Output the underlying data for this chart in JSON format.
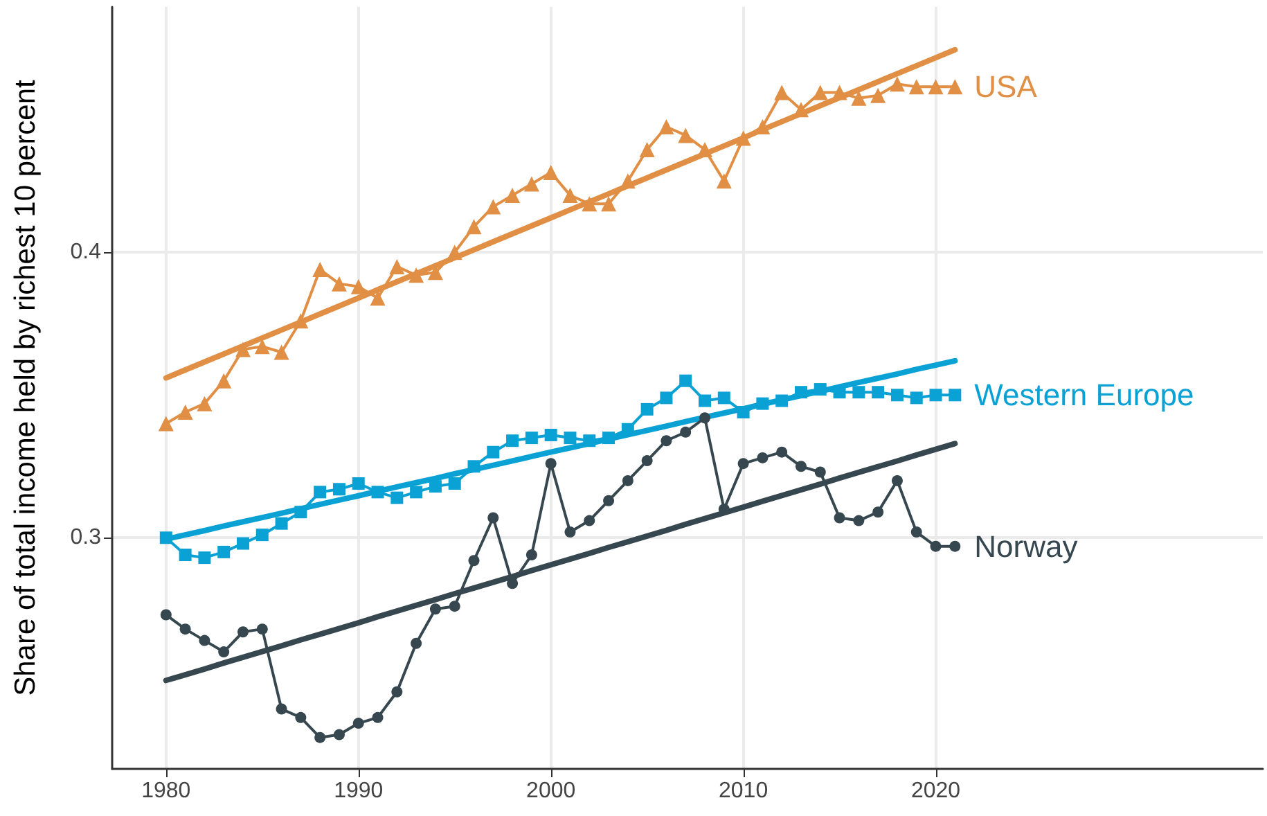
{
  "chart_data": {
    "type": "line",
    "ylabel": "Share of total income held by richest 10 percent",
    "x": [
      1980,
      1981,
      1982,
      1983,
      1984,
      1985,
      1986,
      1987,
      1988,
      1989,
      1990,
      1991,
      1992,
      1993,
      1994,
      1995,
      1996,
      1997,
      1998,
      1999,
      2000,
      2001,
      2002,
      2003,
      2004,
      2005,
      2006,
      2007,
      2008,
      2009,
      2010,
      2011,
      2012,
      2013,
      2014,
      2015,
      2016,
      2017,
      2018,
      2019,
      2020,
      2021
    ],
    "series": [
      {
        "name": "USA",
        "color": "#e08f45",
        "marker": "triangle",
        "values": [
          0.34,
          0.344,
          0.347,
          0.355,
          0.366,
          0.367,
          0.365,
          0.376,
          0.394,
          0.389,
          0.388,
          0.384,
          0.395,
          0.392,
          0.393,
          0.4,
          0.409,
          0.416,
          0.42,
          0.424,
          0.428,
          0.42,
          0.417,
          0.417,
          0.425,
          0.436,
          0.444,
          0.441,
          0.436,
          0.425,
          0.44,
          0.444,
          0.456,
          0.45,
          0.456,
          0.456,
          0.454,
          0.455,
          0.459,
          0.458,
          0.458,
          0.458
        ]
      },
      {
        "name": "Western Europe",
        "color": "#0aa1d5",
        "marker": "square",
        "values": [
          0.3,
          0.294,
          0.293,
          0.295,
          0.298,
          0.301,
          0.305,
          0.309,
          0.316,
          0.317,
          0.319,
          0.316,
          0.314,
          0.316,
          0.318,
          0.319,
          0.325,
          0.33,
          0.334,
          0.335,
          0.336,
          0.335,
          0.334,
          0.335,
          0.338,
          0.345,
          0.349,
          0.355,
          0.348,
          0.349,
          0.344,
          0.347,
          0.348,
          0.351,
          0.352,
          0.351,
          0.351,
          0.351,
          0.35,
          0.349,
          0.35,
          0.35
        ]
      },
      {
        "name": "Norway",
        "color": "#37474f",
        "marker": "circle",
        "values": [
          0.273,
          0.268,
          0.264,
          0.26,
          0.267,
          0.268,
          0.24,
          0.237,
          0.23,
          0.231,
          0.235,
          0.237,
          0.246,
          0.263,
          0.275,
          0.276,
          0.292,
          0.307,
          0.284,
          0.294,
          0.326,
          0.302,
          0.306,
          0.313,
          0.32,
          0.327,
          0.334,
          0.337,
          0.342,
          0.31,
          0.326,
          0.328,
          0.33,
          0.325,
          0.323,
          0.307,
          0.306,
          0.309,
          0.32,
          0.302,
          0.297,
          0.297
        ]
      },
      {
        "type": "line",
        "color": "#e08f45",
        "marker": "none",
        "values": [
          0.356,
          0.3588,
          0.3616,
          0.3644,
          0.3672,
          0.37,
          0.3728,
          0.3756,
          0.3784,
          0.3812,
          0.384,
          0.3869,
          0.3897,
          0.3925,
          0.3953,
          0.3981,
          0.4009,
          0.4037,
          0.4065,
          0.4093,
          0.4121,
          0.4149,
          0.4177,
          0.4205,
          0.4233,
          0.4261,
          0.4289,
          0.4317,
          0.4345,
          0.4373,
          0.4401,
          0.443,
          0.4458,
          0.4486,
          0.4514,
          0.4542,
          0.457,
          0.4598,
          0.4626,
          0.4654,
          0.4682,
          0.471
        ]
      },
      {
        "type": "line",
        "color": "#0aa1d5",
        "marker": "none",
        "values": [
          0.2995,
          0.301,
          0.3025,
          0.3041,
          0.3056,
          0.3071,
          0.3086,
          0.3102,
          0.3117,
          0.3132,
          0.3147,
          0.3163,
          0.3178,
          0.3193,
          0.3208,
          0.3224,
          0.3239,
          0.3254,
          0.3269,
          0.3285,
          0.33,
          0.3315,
          0.333,
          0.3346,
          0.3361,
          0.3376,
          0.3391,
          0.3407,
          0.3422,
          0.3437,
          0.3452,
          0.3468,
          0.3483,
          0.3498,
          0.3513,
          0.3529,
          0.3544,
          0.3559,
          0.3574,
          0.359,
          0.3605,
          0.362
        ]
      },
      {
        "type": "line",
        "color": "#37474f",
        "marker": "none",
        "values": [
          0.25,
          0.252,
          0.254,
          0.2561,
          0.2581,
          0.2601,
          0.2621,
          0.2642,
          0.2662,
          0.2682,
          0.2702,
          0.2723,
          0.2743,
          0.2763,
          0.2783,
          0.2804,
          0.2824,
          0.2844,
          0.2864,
          0.2885,
          0.2905,
          0.2925,
          0.2945,
          0.2966,
          0.2986,
          0.3006,
          0.3026,
          0.3047,
          0.3067,
          0.3087,
          0.3107,
          0.3128,
          0.3148,
          0.3168,
          0.3188,
          0.3209,
          0.3229,
          0.3249,
          0.3269,
          0.329,
          0.331,
          0.333
        ]
      }
    ],
    "xlim": [
      1977.2,
      2037
    ],
    "xticks": [
      1980,
      1990,
      2000,
      2010,
      2020
    ],
    "ylim": [
      0.219,
      0.486
    ],
    "yticks": [
      0.3,
      0.4
    ],
    "grid": true
  }
}
